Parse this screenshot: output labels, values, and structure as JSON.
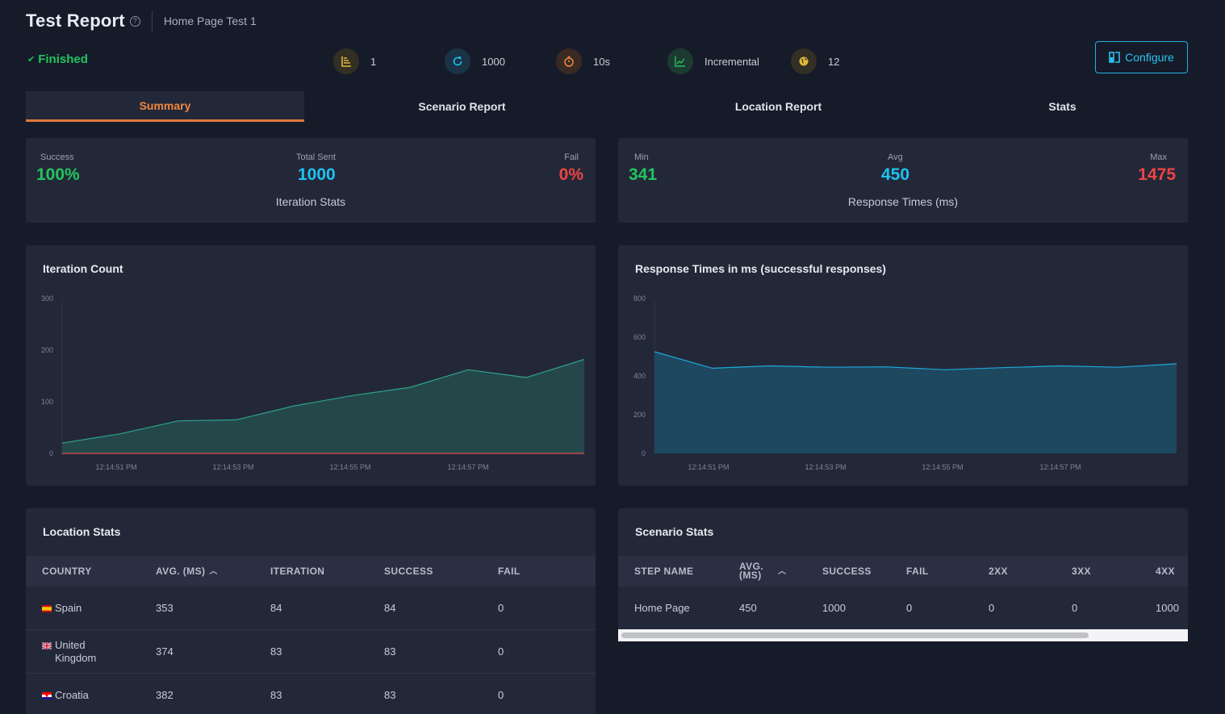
{
  "header": {
    "title": "Test Report",
    "help_icon": "?",
    "subtitle": "Home Page Test 1"
  },
  "status": {
    "icon": "check-icon",
    "label": "Finished",
    "color": "#22c55e"
  },
  "metrics": [
    {
      "icon": "steps-icon",
      "value": "1",
      "color": "#e0b83a"
    },
    {
      "icon": "refresh-icon",
      "value": "1000",
      "color": "#1ec3ef"
    },
    {
      "icon": "stopwatch-icon",
      "value": "10s",
      "color": "#f0883e"
    },
    {
      "icon": "line-chart-icon",
      "value": "Incremental",
      "color": "#22c55e"
    },
    {
      "icon": "globe-icon",
      "value": "12",
      "color": "#e0b83a"
    }
  ],
  "configure_label": "Configure",
  "tabs": [
    {
      "label": "Summary",
      "active": true
    },
    {
      "label": "Scenario Report",
      "active": false
    },
    {
      "label": "Location Report",
      "active": false
    },
    {
      "label": "Stats",
      "active": false
    }
  ],
  "iteration_stats": {
    "success_label": "Success",
    "success_value": "100%",
    "total_label": "Total Sent",
    "total_value": "1000",
    "fail_label": "Fail",
    "fail_value": "0%",
    "caption": "Iteration Stats"
  },
  "response_stats": {
    "min_label": "Min",
    "min_value": "341",
    "avg_label": "Avg",
    "avg_value": "450",
    "max_label": "Max",
    "max_value": "1475",
    "caption": "Response Times (ms)"
  },
  "chart_data": [
    {
      "type": "area",
      "title": "Iteration Count",
      "xlabel": "",
      "ylabel": "",
      "ylim": [
        0,
        300
      ],
      "yticks": [
        "0",
        "100",
        "200",
        "300"
      ],
      "xticks": [
        "12:14:51 PM",
        "12:14:53 PM",
        "12:14:55 PM",
        "12:14:57 PM"
      ],
      "series": [
        {
          "values": [
            20,
            38,
            63,
            65,
            92,
            112,
            128,
            162,
            147,
            182
          ],
          "color": "#2fa38a"
        },
        {
          "values": [
            0,
            0,
            0,
            0,
            0,
            0,
            0,
            0,
            0,
            0
          ],
          "color": "#e05252"
        }
      ]
    },
    {
      "type": "area",
      "title": "Response Times in ms (successful responses)",
      "xlabel": "",
      "ylabel": "",
      "ylim": [
        0,
        800
      ],
      "yticks": [
        "0",
        "200",
        "400",
        "600",
        "800"
      ],
      "xticks": [
        "12:14:51 PM",
        "12:14:53 PM",
        "12:14:55 PM",
        "12:14:57 PM"
      ],
      "series": [
        {
          "values": [
            525,
            440,
            452,
            445,
            447,
            432,
            443,
            452,
            445,
            463
          ],
          "color": "#1ea8d8"
        }
      ]
    }
  ],
  "location_stats": {
    "title": "Location Stats",
    "columns": [
      "COUNTRY",
      "AVG. (MS)",
      "ITERATION",
      "SUCCESS",
      "FAIL"
    ],
    "rows": [
      {
        "country": "Spain",
        "flag": "spain-flag-icon",
        "avg": "353",
        "iteration": "84",
        "success": "84",
        "fail": "0"
      },
      {
        "country": "United Kingdom",
        "flag": "uk-flag-icon",
        "avg": "374",
        "iteration": "83",
        "success": "83",
        "fail": "0"
      },
      {
        "country": "Croatia",
        "flag": "croatia-flag-icon",
        "avg": "382",
        "iteration": "83",
        "success": "83",
        "fail": "0"
      }
    ]
  },
  "scenario_stats": {
    "title": "Scenario Stats",
    "columns": [
      "STEP NAME",
      "AVG. (MS)",
      "SUCCESS",
      "FAIL",
      "2XX",
      "3XX",
      "4XX"
    ],
    "rows": [
      {
        "step": "Home Page",
        "avg": "450",
        "success": "1000",
        "fail": "0",
        "c2xx": "0",
        "c3xx": "0",
        "c4xx": "1000"
      }
    ]
  }
}
